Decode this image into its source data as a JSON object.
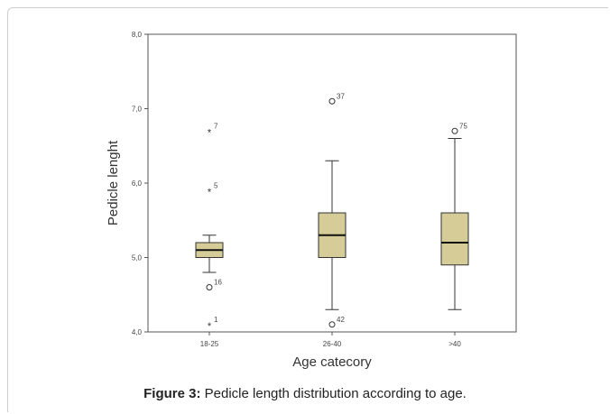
{
  "caption": {
    "label": "Figure 3:",
    "text": "Pedicle length distribution according to age."
  },
  "chart_data": {
    "type": "boxplot",
    "xlabel": "Age catecory",
    "ylabel": "Pedicle lenght",
    "ylim": [
      4.0,
      8.0
    ],
    "yticks": [
      "4,0",
      "5,0",
      "6,0",
      "7,0",
      "8,0"
    ],
    "categories": [
      "18-25",
      "26-40",
      ">40"
    ],
    "box_color": "#d6cc98",
    "boxes": [
      {
        "category": "18-25",
        "whisker_low": 4.8,
        "q1": 5.0,
        "median": 5.1,
        "q3": 5.2,
        "whisker_high": 5.3,
        "outliers": [
          {
            "value": 6.7,
            "label": "7",
            "kind": "extreme"
          },
          {
            "value": 5.9,
            "label": "5",
            "kind": "extreme"
          },
          {
            "value": 4.6,
            "label": "16",
            "kind": "outlier"
          },
          {
            "value": 4.1,
            "label": "1",
            "kind": "extreme"
          }
        ]
      },
      {
        "category": "26-40",
        "whisker_low": 4.3,
        "q1": 5.0,
        "median": 5.3,
        "q3": 5.6,
        "whisker_high": 6.3,
        "outliers": [
          {
            "value": 7.1,
            "label": "37",
            "kind": "outlier"
          },
          {
            "value": 4.1,
            "label": "42",
            "kind": "outlier"
          }
        ]
      },
      {
        "category": ">40",
        "whisker_low": 4.3,
        "q1": 4.9,
        "median": 5.2,
        "q3": 5.6,
        "whisker_high": 6.6,
        "outliers": [
          {
            "value": 6.7,
            "label": "75",
            "kind": "outlier"
          }
        ]
      }
    ]
  }
}
